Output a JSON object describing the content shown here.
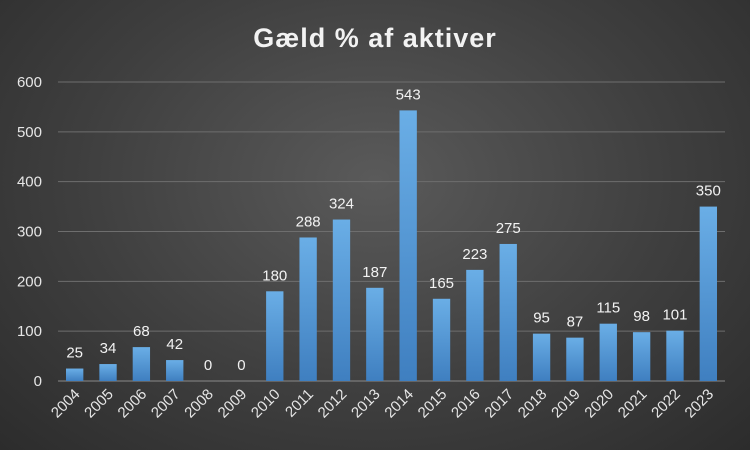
{
  "chart_data": {
    "type": "bar",
    "title": "Gæld % af aktiver",
    "xlabel": "",
    "ylabel": "",
    "categories": [
      "2004",
      "2005",
      "2006",
      "2007",
      "2008",
      "2009",
      "2010",
      "2011",
      "2012",
      "2013",
      "2014",
      "2015",
      "2016",
      "2017",
      "2018",
      "2019",
      "2020",
      "2021",
      "2022",
      "2023"
    ],
    "values": [
      25,
      34,
      68,
      42,
      0,
      0,
      180,
      288,
      324,
      187,
      543,
      165,
      223,
      275,
      95,
      87,
      115,
      98,
      101,
      350
    ],
    "ylim": [
      0,
      600
    ],
    "yticks": [
      0,
      100,
      200,
      300,
      400,
      500,
      600
    ],
    "grid": true,
    "legend": "none",
    "data_labels": true,
    "bar_color": "#5b9bd5"
  }
}
